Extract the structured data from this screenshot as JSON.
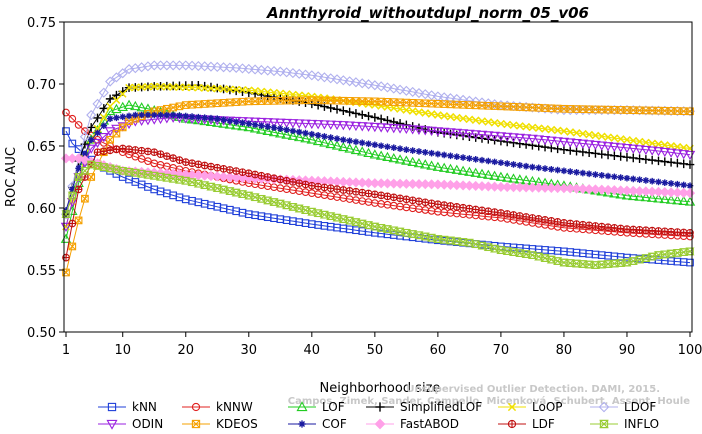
{
  "chart_data": {
    "type": "line",
    "title": "Annthyroid_withoutdupl_norm_05_v06",
    "xlabel": "Neighborhood size",
    "ylabel": "ROC AUC",
    "xlim": [
      1,
      100
    ],
    "ylim": [
      0.5,
      0.75
    ],
    "xticks": [
      1,
      10,
      20,
      30,
      40,
      50,
      60,
      70,
      80,
      90,
      100
    ],
    "yticks": [
      0.5,
      0.55,
      0.6,
      0.65,
      0.7,
      0.75
    ],
    "ytick_labels": [
      "0.50",
      "0.55",
      "0.60",
      "0.65",
      "0.70",
      "0.75"
    ],
    "legend_position": "bottom",
    "watermark": [
      "Campos, Zimek, Sander, Campello, Micenková, Schubert, Assent, Houle",
      "Unsupervised Outlier Detection. DAMI, 2015."
    ],
    "series": [
      {
        "name": "kNN",
        "color": "#1f3fd9",
        "marker": "square",
        "points": [
          [
            1,
            0.662
          ],
          [
            2,
            0.652
          ],
          [
            4,
            0.643
          ],
          [
            6,
            0.635
          ],
          [
            10,
            0.625
          ],
          [
            15,
            0.615
          ],
          [
            20,
            0.607
          ],
          [
            30,
            0.595
          ],
          [
            40,
            0.587
          ],
          [
            50,
            0.58
          ],
          [
            60,
            0.574
          ],
          [
            70,
            0.569
          ],
          [
            80,
            0.565
          ],
          [
            90,
            0.56
          ],
          [
            100,
            0.556
          ]
        ]
      },
      {
        "name": "kNNW",
        "color": "#e0201f",
        "marker": "circle",
        "points": [
          [
            1,
            0.677
          ],
          [
            2,
            0.672
          ],
          [
            4,
            0.662
          ],
          [
            6,
            0.655
          ],
          [
            10,
            0.645
          ],
          [
            15,
            0.636
          ],
          [
            20,
            0.63
          ],
          [
            30,
            0.62
          ],
          [
            40,
            0.612
          ],
          [
            50,
            0.604
          ],
          [
            60,
            0.597
          ],
          [
            70,
            0.592
          ],
          [
            80,
            0.584
          ],
          [
            90,
            0.58
          ],
          [
            100,
            0.577
          ]
        ]
      },
      {
        "name": "LOF",
        "color": "#22cc22",
        "marker": "triangle",
        "points": [
          [
            1,
            0.575
          ],
          [
            3,
            0.62
          ],
          [
            5,
            0.655
          ],
          [
            8,
            0.678
          ],
          [
            11,
            0.683
          ],
          [
            14,
            0.68
          ],
          [
            20,
            0.672
          ],
          [
            30,
            0.665
          ],
          [
            40,
            0.655
          ],
          [
            50,
            0.643
          ],
          [
            60,
            0.633
          ],
          [
            70,
            0.625
          ],
          [
            80,
            0.618
          ],
          [
            90,
            0.61
          ],
          [
            100,
            0.605
          ]
        ]
      },
      {
        "name": "SimplifiedLOF",
        "color": "#000000",
        "marker": "plus",
        "points": [
          [
            1,
            0.595
          ],
          [
            3,
            0.638
          ],
          [
            5,
            0.665
          ],
          [
            8,
            0.688
          ],
          [
            11,
            0.697
          ],
          [
            15,
            0.698
          ],
          [
            22,
            0.699
          ],
          [
            30,
            0.693
          ],
          [
            40,
            0.684
          ],
          [
            50,
            0.673
          ],
          [
            60,
            0.661
          ],
          [
            70,
            0.654
          ],
          [
            80,
            0.647
          ],
          [
            90,
            0.641
          ],
          [
            100,
            0.635
          ]
        ]
      },
      {
        "name": "LoOP",
        "color": "#f0e000",
        "marker": "x",
        "points": [
          [
            1,
            0.585
          ],
          [
            3,
            0.625
          ],
          [
            5,
            0.655
          ],
          [
            8,
            0.682
          ],
          [
            11,
            0.697
          ],
          [
            15,
            0.698
          ],
          [
            22,
            0.697
          ],
          [
            30,
            0.695
          ],
          [
            40,
            0.69
          ],
          [
            50,
            0.683
          ],
          [
            60,
            0.675
          ],
          [
            70,
            0.668
          ],
          [
            80,
            0.662
          ],
          [
            90,
            0.655
          ],
          [
            100,
            0.648
          ]
        ]
      },
      {
        "name": "LDOF",
        "color": "#b0b0ee",
        "marker": "diamond",
        "points": [
          [
            1,
            0.595
          ],
          [
            3,
            0.64
          ],
          [
            5,
            0.675
          ],
          [
            8,
            0.702
          ],
          [
            11,
            0.712
          ],
          [
            15,
            0.715
          ],
          [
            20,
            0.715
          ],
          [
            28,
            0.713
          ],
          [
            35,
            0.71
          ],
          [
            40,
            0.707
          ],
          [
            50,
            0.699
          ],
          [
            60,
            0.69
          ],
          [
            70,
            0.683
          ],
          [
            80,
            0.679
          ],
          [
            90,
            0.679
          ],
          [
            100,
            0.678
          ]
        ]
      },
      {
        "name": "ODIN",
        "color": "#9a20e0",
        "marker": "triangle-down",
        "points": [
          [
            1,
            0.585
          ],
          [
            3,
            0.625
          ],
          [
            5,
            0.648
          ],
          [
            8,
            0.662
          ],
          [
            12,
            0.67
          ],
          [
            18,
            0.673
          ],
          [
            25,
            0.671
          ],
          [
            35,
            0.669
          ],
          [
            45,
            0.667
          ],
          [
            55,
            0.664
          ],
          [
            65,
            0.66
          ],
          [
            75,
            0.656
          ],
          [
            85,
            0.651
          ],
          [
            95,
            0.646
          ],
          [
            100,
            0.643
          ]
        ]
      },
      {
        "name": "KDEOS",
        "color": "#f5a000",
        "marker": "square-x",
        "points": [
          [
            1,
            0.548
          ],
          [
            3,
            0.59
          ],
          [
            5,
            0.625
          ],
          [
            8,
            0.655
          ],
          [
            11,
            0.67
          ],
          [
            15,
            0.678
          ],
          [
            20,
            0.683
          ],
          [
            30,
            0.686
          ],
          [
            40,
            0.687
          ],
          [
            50,
            0.686
          ],
          [
            60,
            0.684
          ],
          [
            70,
            0.682
          ],
          [
            80,
            0.68
          ],
          [
            90,
            0.679
          ],
          [
            100,
            0.678
          ]
        ]
      },
      {
        "name": "COF",
        "color": "#1a1aa0",
        "marker": "asterisk",
        "points": [
          [
            1,
            0.598
          ],
          [
            3,
            0.632
          ],
          [
            5,
            0.655
          ],
          [
            8,
            0.672
          ],
          [
            12,
            0.675
          ],
          [
            18,
            0.675
          ],
          [
            25,
            0.672
          ],
          [
            35,
            0.664
          ],
          [
            45,
            0.655
          ],
          [
            55,
            0.647
          ],
          [
            65,
            0.64
          ],
          [
            75,
            0.633
          ],
          [
            85,
            0.627
          ],
          [
            95,
            0.621
          ],
          [
            100,
            0.618
          ]
        ]
      },
      {
        "name": "FastABOD",
        "color": "#ffa0e8",
        "marker": "diamond-filled",
        "points": [
          [
            1,
            0.64
          ],
          [
            3,
            0.64
          ],
          [
            6,
            0.636
          ],
          [
            10,
            0.63
          ],
          [
            20,
            0.627
          ],
          [
            30,
            0.624
          ],
          [
            40,
            0.622
          ],
          [
            50,
            0.62
          ],
          [
            60,
            0.619
          ],
          [
            70,
            0.617
          ],
          [
            80,
            0.616
          ],
          [
            90,
            0.614
          ],
          [
            100,
            0.612
          ]
        ]
      },
      {
        "name": "LDF",
        "color": "#c01010",
        "marker": "circle-plus",
        "points": [
          [
            1,
            0.56
          ],
          [
            3,
            0.615
          ],
          [
            6,
            0.645
          ],
          [
            10,
            0.648
          ],
          [
            15,
            0.645
          ],
          [
            20,
            0.637
          ],
          [
            30,
            0.628
          ],
          [
            40,
            0.618
          ],
          [
            50,
            0.611
          ],
          [
            60,
            0.603
          ],
          [
            70,
            0.596
          ],
          [
            80,
            0.588
          ],
          [
            90,
            0.583
          ],
          [
            100,
            0.58
          ]
        ]
      },
      {
        "name": "INFLO",
        "color": "#99cc33",
        "marker": "hourglass",
        "points": [
          [
            1,
            0.595
          ],
          [
            3,
            0.625
          ],
          [
            5,
            0.635
          ],
          [
            10,
            0.63
          ],
          [
            20,
            0.622
          ],
          [
            30,
            0.61
          ],
          [
            40,
            0.597
          ],
          [
            50,
            0.585
          ],
          [
            60,
            0.575
          ],
          [
            65,
            0.572
          ],
          [
            70,
            0.566
          ],
          [
            75,
            0.562
          ],
          [
            80,
            0.556
          ],
          [
            85,
            0.554
          ],
          [
            90,
            0.556
          ],
          [
            95,
            0.562
          ],
          [
            100,
            0.565
          ]
        ]
      }
    ]
  }
}
